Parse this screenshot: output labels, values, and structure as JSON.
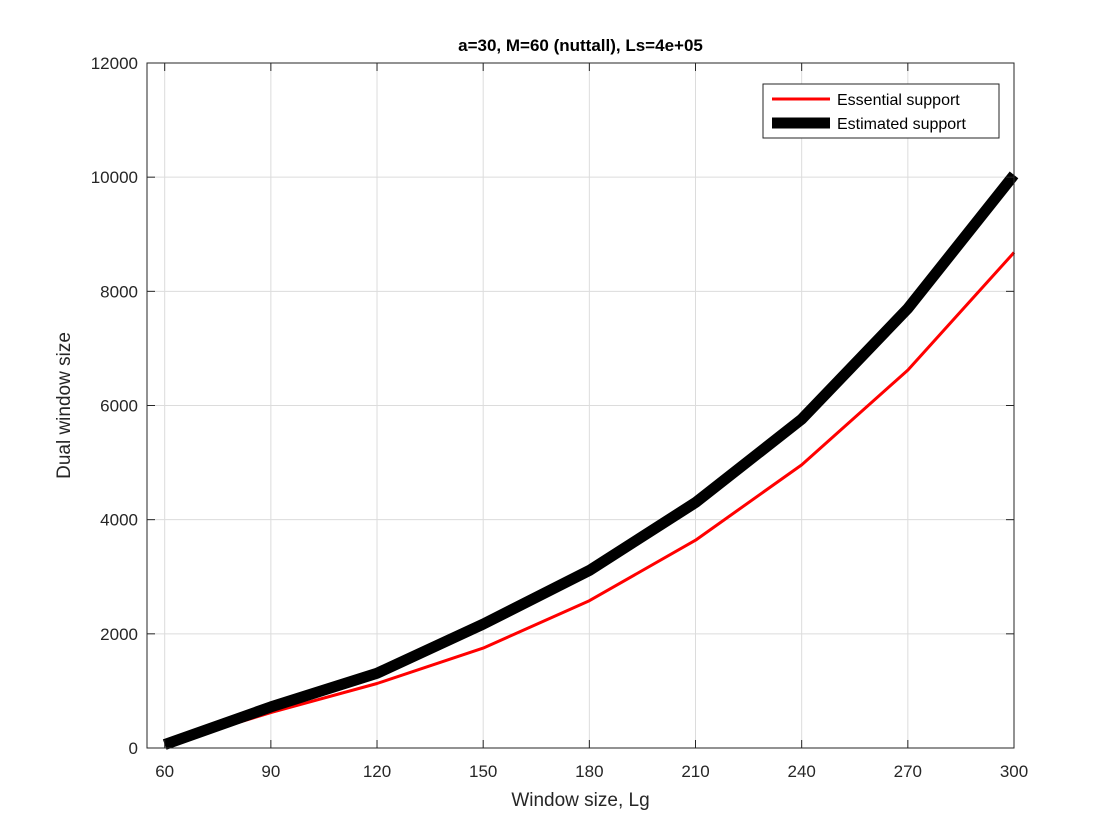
{
  "chart_data": {
    "type": "line",
    "title": "a=30, M=60 (nuttall), Ls=4e+05",
    "xlabel": "Window size, Lg",
    "ylabel": "Dual window size",
    "xlim": [
      55,
      300
    ],
    "ylim": [
      0,
      12000
    ],
    "xticks": [
      60,
      90,
      120,
      150,
      180,
      210,
      240,
      270,
      300
    ],
    "yticks": [
      0,
      2000,
      4000,
      6000,
      8000,
      10000,
      12000
    ],
    "grid": true,
    "legend_position": "top-right",
    "x": [
      60,
      90,
      120,
      150,
      180,
      210,
      240,
      270,
      300
    ],
    "series": [
      {
        "name": "Essential support",
        "color": "#ff0000",
        "values": [
          60,
          620,
          1130,
          1750,
          2580,
          3640,
          4960,
          6620,
          8680
        ]
      },
      {
        "name": "Estimated support",
        "color": "#000000",
        "values": [
          60,
          720,
          1310,
          2170,
          3110,
          4300,
          5760,
          7700,
          10040
        ]
      }
    ]
  }
}
